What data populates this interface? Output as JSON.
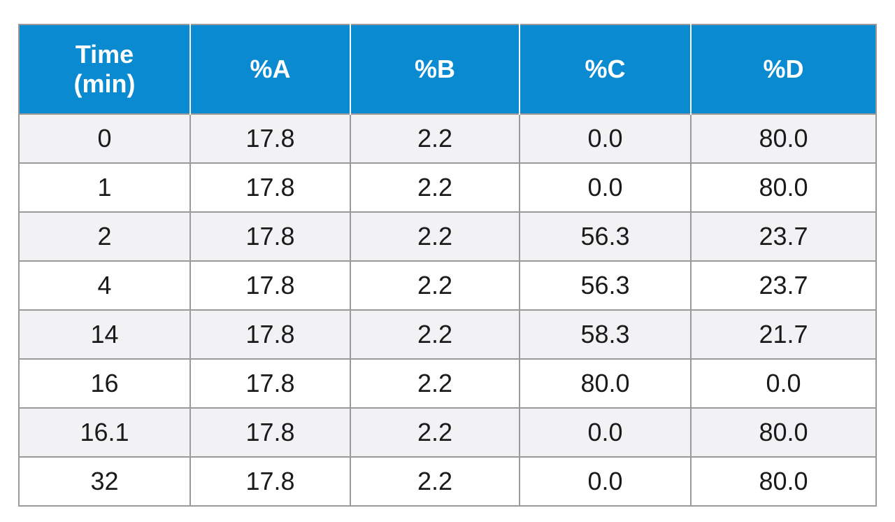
{
  "table": {
    "headers": [
      {
        "lines": [
          "Time",
          "(min)"
        ]
      },
      {
        "lines": [
          "%A"
        ]
      },
      {
        "lines": [
          "%B"
        ]
      },
      {
        "lines": [
          "%C"
        ]
      },
      {
        "lines": [
          "%D"
        ]
      }
    ],
    "rows": [
      [
        "0",
        "17.8",
        "2.2",
        "0.0",
        "80.0"
      ],
      [
        "1",
        "17.8",
        "2.2",
        "0.0",
        "80.0"
      ],
      [
        "2",
        "17.8",
        "2.2",
        "56.3",
        "23.7"
      ],
      [
        "4",
        "17.8",
        "2.2",
        "56.3",
        "23.7"
      ],
      [
        "14",
        "17.8",
        "2.2",
        "58.3",
        "21.7"
      ],
      [
        "16",
        "17.8",
        "2.2",
        "80.0",
        "0.0"
      ],
      [
        "16.1",
        "17.8",
        "2.2",
        "0.0",
        "80.0"
      ],
      [
        "32",
        "17.8",
        "2.2",
        "0.0",
        "80.0"
      ]
    ]
  },
  "colors": {
    "header_bg": "#0a8bd1",
    "header_text": "#ffffff",
    "row_alt_bg": "#f2f2f4",
    "border": "#9a9a9a"
  }
}
